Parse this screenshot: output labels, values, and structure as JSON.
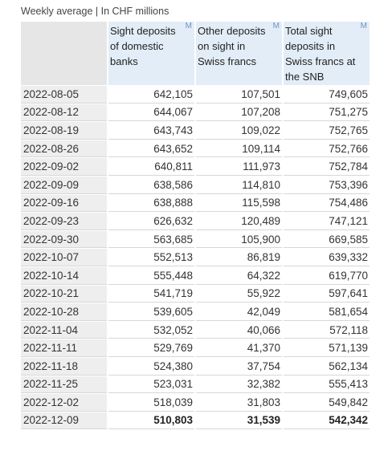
{
  "caption": "Weekly average | In CHF millions",
  "columns": [
    {
      "label": "Sight deposits of domestic banks",
      "marker": "M"
    },
    {
      "label": "Other deposits on sight in Swiss francs",
      "marker": "M"
    },
    {
      "label": "Total sight deposits in Swiss francs at the SNB",
      "marker": "M"
    }
  ],
  "rows": [
    {
      "date": "2022-08-05",
      "values": [
        "642,105",
        "107,501",
        "749,605"
      ]
    },
    {
      "date": "2022-08-12",
      "values": [
        "644,067",
        "107,208",
        "751,275"
      ]
    },
    {
      "date": "2022-08-19",
      "values": [
        "643,743",
        "109,022",
        "752,765"
      ]
    },
    {
      "date": "2022-08-26",
      "values": [
        "643,652",
        "109,114",
        "752,766"
      ]
    },
    {
      "date": "2022-09-02",
      "values": [
        "640,811",
        "111,973",
        "752,784"
      ]
    },
    {
      "date": "2022-09-09",
      "values": [
        "638,586",
        "114,810",
        "753,396"
      ]
    },
    {
      "date": "2022-09-16",
      "values": [
        "638,888",
        "115,598",
        "754,486"
      ]
    },
    {
      "date": "2022-09-23",
      "values": [
        "626,632",
        "120,489",
        "747,121"
      ]
    },
    {
      "date": "2022-09-30",
      "values": [
        "563,685",
        "105,900",
        "669,585"
      ]
    },
    {
      "date": "2022-10-07",
      "values": [
        "552,513",
        "86,819",
        "639,332"
      ]
    },
    {
      "date": "2022-10-14",
      "values": [
        "555,448",
        "64,322",
        "619,770"
      ]
    },
    {
      "date": "2022-10-21",
      "values": [
        "541,719",
        "55,922",
        "597,641"
      ]
    },
    {
      "date": "2022-10-28",
      "values": [
        "539,605",
        "42,049",
        "581,654"
      ]
    },
    {
      "date": "2022-11-04",
      "values": [
        "532,052",
        "40,066",
        "572,118"
      ]
    },
    {
      "date": "2022-11-11",
      "values": [
        "529,769",
        "41,370",
        "571,139"
      ]
    },
    {
      "date": "2022-11-18",
      "values": [
        "524,380",
        "37,754",
        "562,134"
      ]
    },
    {
      "date": "2022-11-25",
      "values": [
        "523,031",
        "32,382",
        "555,413"
      ]
    },
    {
      "date": "2022-12-02",
      "values": [
        "518,039",
        "31,803",
        "549,842"
      ]
    },
    {
      "date": "2022-12-09",
      "values": [
        "510,803",
        "31,539",
        "542,342"
      ]
    }
  ]
}
